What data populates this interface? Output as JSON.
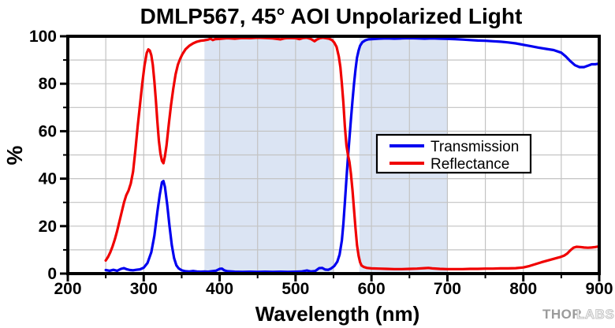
{
  "page": {
    "background": "#ffffff"
  },
  "branding": {
    "logo_thor": "THOR",
    "logo_labs": "LABS"
  },
  "chart_data": {
    "type": "line",
    "title": "DMLP567, 45° AOI Unpolarized Light",
    "xlabel": "Wavelength (nm)",
    "ylabel": "%",
    "xlim": [
      200,
      900
    ],
    "ylim": [
      0,
      100
    ],
    "x_major_ticks": [
      200,
      300,
      400,
      500,
      600,
      700,
      800,
      900
    ],
    "x_minor_tick_step": 50,
    "y_major_ticks": [
      0,
      20,
      40,
      60,
      80,
      100
    ],
    "y_minor_tick_step": 10,
    "grid": {
      "x_step": 50,
      "y_step": 10,
      "color": "#c3c3c3",
      "on": true
    },
    "frame_color": "#000000",
    "shaded_bands": [
      {
        "x_from": 380,
        "x_to": 550
      },
      {
        "x_from": 584,
        "x_to": 700
      }
    ],
    "band_color": "#dbe4f3",
    "legend": {
      "position": "middle-right",
      "border_color": "#000000",
      "background": "#ffffff"
    },
    "series": [
      {
        "name": "Transmission",
        "color": "#0000f0",
        "points": [
          [
            250,
            1.5
          ],
          [
            255,
            1.2
          ],
          [
            260,
            1.6
          ],
          [
            265,
            1.2
          ],
          [
            270,
            2.0
          ],
          [
            274,
            2.3
          ],
          [
            278,
            1.8
          ],
          [
            282,
            1.5
          ],
          [
            286,
            1.4
          ],
          [
            290,
            1.6
          ],
          [
            295,
            1.8
          ],
          [
            300,
            2.5
          ],
          [
            305,
            4.5
          ],
          [
            310,
            9
          ],
          [
            314,
            16
          ],
          [
            318,
            26
          ],
          [
            321,
            33
          ],
          [
            324,
            38.5
          ],
          [
            326,
            39
          ],
          [
            328,
            36.5
          ],
          [
            331,
            29
          ],
          [
            334,
            20
          ],
          [
            337,
            12
          ],
          [
            340,
            6.5
          ],
          [
            343,
            3.5
          ],
          [
            346,
            2.2
          ],
          [
            350,
            1.4
          ],
          [
            355,
            1.0
          ],
          [
            360,
            0.9
          ],
          [
            365,
            1.1
          ],
          [
            370,
            0.9
          ],
          [
            375,
            0.8
          ],
          [
            380,
            0.9
          ],
          [
            385,
            0.8
          ],
          [
            390,
            1.0
          ],
          [
            395,
            1.2
          ],
          [
            400,
            2.0
          ],
          [
            403,
            2.1
          ],
          [
            406,
            1.4
          ],
          [
            410,
            1.0
          ],
          [
            420,
            0.8
          ],
          [
            430,
            0.7
          ],
          [
            440,
            0.8
          ],
          [
            450,
            0.7
          ],
          [
            460,
            0.8
          ],
          [
            470,
            0.7
          ],
          [
            480,
            0.8
          ],
          [
            490,
            0.7
          ],
          [
            500,
            0.8
          ],
          [
            508,
            0.9
          ],
          [
            515,
            1.3
          ],
          [
            520,
            0.9
          ],
          [
            526,
            1.1
          ],
          [
            531,
            2.3
          ],
          [
            535,
            2.4
          ],
          [
            539,
            1.7
          ],
          [
            543,
            1.6
          ],
          [
            547,
            2.2
          ],
          [
            551,
            3.2
          ],
          [
            555,
            5
          ],
          [
            558,
            8
          ],
          [
            561,
            14
          ],
          [
            563,
            21
          ],
          [
            565,
            30
          ],
          [
            567,
            40
          ],
          [
            569,
            49
          ],
          [
            571,
            57
          ],
          [
            573,
            65
          ],
          [
            575,
            73
          ],
          [
            577,
            80
          ],
          [
            579,
            86
          ],
          [
            581,
            91
          ],
          [
            583,
            94
          ],
          [
            585,
            96
          ],
          [
            588,
            97.5
          ],
          [
            592,
            98.3
          ],
          [
            596,
            98.7
          ],
          [
            600,
            98.8
          ],
          [
            610,
            99
          ],
          [
            620,
            99.1
          ],
          [
            630,
            99
          ],
          [
            640,
            99.1
          ],
          [
            650,
            99.2
          ],
          [
            660,
            99.1
          ],
          [
            670,
            99
          ],
          [
            680,
            99.1
          ],
          [
            690,
            99
          ],
          [
            700,
            98.9
          ],
          [
            710,
            98.8
          ],
          [
            720,
            98.6
          ],
          [
            730,
            98.4
          ],
          [
            740,
            98.2
          ],
          [
            750,
            98.1
          ],
          [
            760,
            97.9
          ],
          [
            770,
            97.7
          ],
          [
            780,
            97.4
          ],
          [
            790,
            97
          ],
          [
            800,
            96.4
          ],
          [
            810,
            95.8
          ],
          [
            820,
            95.2
          ],
          [
            830,
            94.7
          ],
          [
            840,
            94.2
          ],
          [
            850,
            93.1
          ],
          [
            856,
            91.5
          ],
          [
            862,
            89.5
          ],
          [
            868,
            87.8
          ],
          [
            874,
            87
          ],
          [
            880,
            87
          ],
          [
            886,
            87.7
          ],
          [
            890,
            88.2
          ],
          [
            895,
            88.2
          ],
          [
            900,
            88.5
          ]
        ]
      },
      {
        "name": "Reflectance",
        "color": "#f00000",
        "points": [
          [
            250,
            5.5
          ],
          [
            253,
            7
          ],
          [
            256,
            9
          ],
          [
            259,
            11.5
          ],
          [
            262,
            14.5
          ],
          [
            265,
            18
          ],
          [
            268,
            22
          ],
          [
            271,
            26
          ],
          [
            274,
            30
          ],
          [
            277,
            33
          ],
          [
            280,
            35
          ],
          [
            283,
            38
          ],
          [
            286,
            43
          ],
          [
            289,
            52
          ],
          [
            292,
            62
          ],
          [
            295,
            71
          ],
          [
            298,
            80
          ],
          [
            301,
            87.5
          ],
          [
            304,
            93
          ],
          [
            306,
            94.5
          ],
          [
            308,
            94
          ],
          [
            310,
            92
          ],
          [
            312,
            88
          ],
          [
            314,
            81
          ],
          [
            316,
            73
          ],
          [
            318,
            64
          ],
          [
            320,
            56
          ],
          [
            322,
            50.5
          ],
          [
            324,
            47.5
          ],
          [
            326,
            46.5
          ],
          [
            328,
            49.5
          ],
          [
            330,
            54
          ],
          [
            333,
            63
          ],
          [
            336,
            71
          ],
          [
            339,
            78
          ],
          [
            342,
            84
          ],
          [
            345,
            88
          ],
          [
            348,
            90.5
          ],
          [
            351,
            92.5
          ],
          [
            355,
            94.5
          ],
          [
            360,
            96
          ],
          [
            365,
            97
          ],
          [
            370,
            97.7
          ],
          [
            375,
            98.1
          ],
          [
            380,
            98.3
          ],
          [
            385,
            98.6
          ],
          [
            388,
            99
          ],
          [
            391,
            98.4
          ],
          [
            394,
            98.8
          ],
          [
            400,
            98.9
          ],
          [
            410,
            99.2
          ],
          [
            420,
            99
          ],
          [
            430,
            99.3
          ],
          [
            440,
            99.2
          ],
          [
            450,
            99.4
          ],
          [
            460,
            99.3
          ],
          [
            470,
            99.1
          ],
          [
            480,
            98.7
          ],
          [
            485,
            99.1
          ],
          [
            490,
            99.3
          ],
          [
            500,
            99.2
          ],
          [
            505,
            98.8
          ],
          [
            510,
            99.3
          ],
          [
            515,
            99.4
          ],
          [
            520,
            98.9
          ],
          [
            525,
            97.9
          ],
          [
            528,
            98.6
          ],
          [
            532,
            99.2
          ],
          [
            536,
            99.4
          ],
          [
            540,
            99.2
          ],
          [
            544,
            99
          ],
          [
            548,
            98.4
          ],
          [
            551,
            97.3
          ],
          [
            554,
            95.5
          ],
          [
            557,
            91.5
          ],
          [
            559,
            87
          ],
          [
            561,
            80
          ],
          [
            563,
            72
          ],
          [
            565,
            62
          ],
          [
            567,
            54
          ],
          [
            569,
            50
          ],
          [
            571,
            47
          ],
          [
            573,
            42
          ],
          [
            575,
            35
          ],
          [
            577,
            27
          ],
          [
            579,
            19
          ],
          [
            581,
            12
          ],
          [
            583,
            7.5
          ],
          [
            585,
            4.8
          ],
          [
            587,
            3.4
          ],
          [
            590,
            2.8
          ],
          [
            594,
            2.4
          ],
          [
            600,
            2.2
          ],
          [
            610,
            2.1
          ],
          [
            620,
            2.0
          ],
          [
            630,
            1.9
          ],
          [
            640,
            1.9
          ],
          [
            650,
            2.0
          ],
          [
            660,
            2.1
          ],
          [
            670,
            2.3
          ],
          [
            675,
            2.4
          ],
          [
            680,
            2.2
          ],
          [
            690,
            2.0
          ],
          [
            700,
            1.9
          ],
          [
            710,
            1.9
          ],
          [
            720,
            1.9
          ],
          [
            730,
            2.0
          ],
          [
            740,
            2.0
          ],
          [
            750,
            2.1
          ],
          [
            760,
            2.1
          ],
          [
            770,
            2.2
          ],
          [
            780,
            2.2
          ],
          [
            790,
            2.3
          ],
          [
            800,
            2.6
          ],
          [
            808,
            3.2
          ],
          [
            816,
            4.0
          ],
          [
            824,
            4.8
          ],
          [
            832,
            5.5
          ],
          [
            840,
            6.2
          ],
          [
            848,
            6.9
          ],
          [
            854,
            7.6
          ],
          [
            858,
            8.5
          ],
          [
            862,
            9.8
          ],
          [
            866,
            10.9
          ],
          [
            870,
            11.3
          ],
          [
            875,
            11.2
          ],
          [
            880,
            11
          ],
          [
            885,
            10.9
          ],
          [
            890,
            11
          ],
          [
            895,
            11.2
          ],
          [
            900,
            11.5
          ]
        ]
      }
    ]
  }
}
